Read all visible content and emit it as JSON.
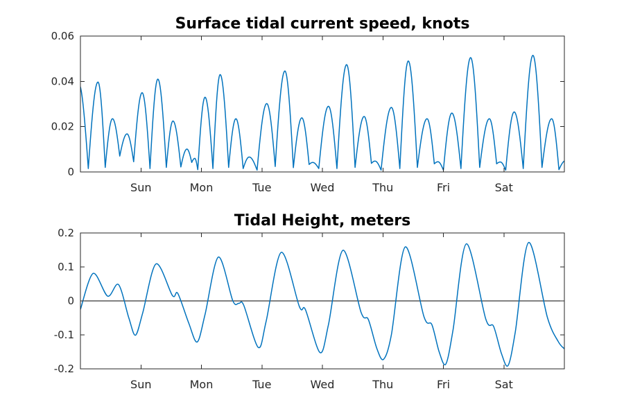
{
  "colors": {
    "background": "#ffffff",
    "series_blue": "#0072BD",
    "axis": "#262626",
    "zero_line": "#000000",
    "title_text": "#000000"
  },
  "chart_data": [
    {
      "id": "surface_current_speed",
      "type": "line",
      "title": "Surface tidal current speed, knots",
      "curve": "rectified",
      "line_color": "#0072BD",
      "x_range_days": [
        0,
        8
      ],
      "xticks": [
        {
          "t": 1,
          "label": "Sun"
        },
        {
          "t": 2,
          "label": "Mon"
        },
        {
          "t": 3,
          "label": "Tue"
        },
        {
          "t": 4,
          "label": "Wed"
        },
        {
          "t": 5,
          "label": "Thu"
        },
        {
          "t": 6,
          "label": "Fri"
        },
        {
          "t": 7,
          "label": "Sat"
        }
      ],
      "ylim": [
        0,
        0.06
      ],
      "yticks": [
        {
          "v": 0,
          "label": "0"
        },
        {
          "v": 0.02,
          "label": "0.02"
        },
        {
          "v": 0.04,
          "label": "0.04"
        },
        {
          "v": 0.06,
          "label": "0.06"
        }
      ],
      "grid": false,
      "zero_line": false,
      "points": [
        [
          -0.03,
          0.0392
        ],
        [
          0.13,
          0.0015
        ],
        [
          0.29,
          0.0397
        ],
        [
          0.41,
          0.002
        ],
        [
          0.53,
          0.0235
        ],
        [
          0.65,
          0.007
        ],
        [
          0.77,
          0.0168
        ],
        [
          0.88,
          0.0045
        ],
        [
          1.02,
          0.035
        ],
        [
          1.15,
          0.0015
        ],
        [
          1.28,
          0.041
        ],
        [
          1.42,
          0.002
        ],
        [
          1.53,
          0.0225
        ],
        [
          1.66,
          0.0022
        ],
        [
          1.76,
          0.0101
        ],
        [
          1.84,
          0.0042
        ],
        [
          1.89,
          0.006
        ],
        [
          1.94,
          0.001
        ],
        [
          2.06,
          0.033
        ],
        [
          2.19,
          0.0015
        ],
        [
          2.31,
          0.043
        ],
        [
          2.45,
          0.002
        ],
        [
          2.57,
          0.0235
        ],
        [
          2.69,
          0.0015
        ],
        [
          2.79,
          0.0066
        ],
        [
          2.92,
          0.0008
        ],
        [
          3.08,
          0.0302
        ],
        [
          3.22,
          0.0024
        ],
        [
          3.38,
          0.0446
        ],
        [
          3.52,
          0.0019
        ],
        [
          3.66,
          0.0239
        ],
        [
          3.78,
          0.0033
        ],
        [
          3.84,
          0.0042
        ],
        [
          3.94,
          0.0015
        ],
        [
          4.1,
          0.029
        ],
        [
          4.24,
          0.0015
        ],
        [
          4.4,
          0.0474
        ],
        [
          4.54,
          0.002
        ],
        [
          4.69,
          0.0245
        ],
        [
          4.81,
          0.0038
        ],
        [
          4.87,
          0.0048
        ],
        [
          4.97,
          0.0008
        ],
        [
          5.14,
          0.0285
        ],
        [
          5.28,
          0.0015
        ],
        [
          5.42,
          0.049
        ],
        [
          5.57,
          0.002
        ],
        [
          5.73,
          0.0235
        ],
        [
          5.85,
          0.0036
        ],
        [
          5.91,
          0.0045
        ],
        [
          6.0,
          0.0008
        ],
        [
          6.14,
          0.026
        ],
        [
          6.29,
          0.0015
        ],
        [
          6.45,
          0.0505
        ],
        [
          6.6,
          0.002
        ],
        [
          6.76,
          0.0235
        ],
        [
          6.88,
          0.0036
        ],
        [
          6.94,
          0.0044
        ],
        [
          7.03,
          0.0008
        ],
        [
          7.17,
          0.0265
        ],
        [
          7.32,
          0.0015
        ],
        [
          7.48,
          0.0515
        ],
        [
          7.63,
          0.002
        ],
        [
          7.79,
          0.0235
        ],
        [
          7.91,
          0.001
        ],
        [
          8.02,
          0.005
        ]
      ]
    },
    {
      "id": "tidal_height",
      "type": "line",
      "title": "Tidal Height, meters",
      "curve": "smooth",
      "line_color": "#0072BD",
      "x_range_days": [
        0,
        8
      ],
      "xticks": [
        {
          "t": 1,
          "label": "Sun"
        },
        {
          "t": 2,
          "label": "Mon"
        },
        {
          "t": 3,
          "label": "Tue"
        },
        {
          "t": 4,
          "label": "Wed"
        },
        {
          "t": 5,
          "label": "Thu"
        },
        {
          "t": 6,
          "label": "Fri"
        },
        {
          "t": 7,
          "label": "Sat"
        }
      ],
      "ylim": [
        -0.2,
        0.2
      ],
      "yticks": [
        {
          "v": -0.2,
          "label": "-0.2"
        },
        {
          "v": -0.1,
          "label": "-0.1"
        },
        {
          "v": 0,
          "label": "0"
        },
        {
          "v": 0.1,
          "label": "0.1"
        },
        {
          "v": 0.2,
          "label": "0.2"
        }
      ],
      "grid": false,
      "zero_line": true,
      "points": [
        [
          0.0,
          -0.025
        ],
        [
          0.21,
          0.081
        ],
        [
          0.45,
          0.014
        ],
        [
          0.63,
          0.048
        ],
        [
          0.8,
          -0.05
        ],
        [
          0.91,
          -0.101
        ],
        [
          1.03,
          -0.035
        ],
        [
          1.25,
          0.109
        ],
        [
          1.52,
          0.016
        ],
        [
          1.61,
          0.022
        ],
        [
          1.79,
          -0.065
        ],
        [
          1.93,
          -0.121
        ],
        [
          2.06,
          -0.04
        ],
        [
          2.28,
          0.129
        ],
        [
          2.52,
          0.0
        ],
        [
          2.62,
          -0.007
        ],
        [
          2.7,
          -0.013
        ],
        [
          2.94,
          -0.137
        ],
        [
          3.07,
          -0.06
        ],
        [
          3.32,
          0.143
        ],
        [
          3.62,
          -0.017
        ],
        [
          3.72,
          -0.026
        ],
        [
          3.96,
          -0.152
        ],
        [
          4.1,
          -0.07
        ],
        [
          4.34,
          0.149
        ],
        [
          4.64,
          -0.034
        ],
        [
          4.76,
          -0.055
        ],
        [
          4.9,
          -0.14
        ],
        [
          5.01,
          -0.172
        ],
        [
          5.14,
          -0.1
        ],
        [
          5.37,
          0.159
        ],
        [
          5.68,
          -0.047
        ],
        [
          5.81,
          -0.07
        ],
        [
          5.93,
          -0.15
        ],
        [
          6.04,
          -0.186
        ],
        [
          6.16,
          -0.085
        ],
        [
          6.38,
          0.168
        ],
        [
          6.7,
          -0.053
        ],
        [
          6.83,
          -0.075
        ],
        [
          6.96,
          -0.155
        ],
        [
          7.07,
          -0.19
        ],
        [
          7.19,
          -0.09
        ],
        [
          7.41,
          0.172
        ],
        [
          7.72,
          -0.049
        ],
        [
          7.9,
          -0.12
        ],
        [
          8.0,
          -0.141
        ]
      ]
    }
  ]
}
